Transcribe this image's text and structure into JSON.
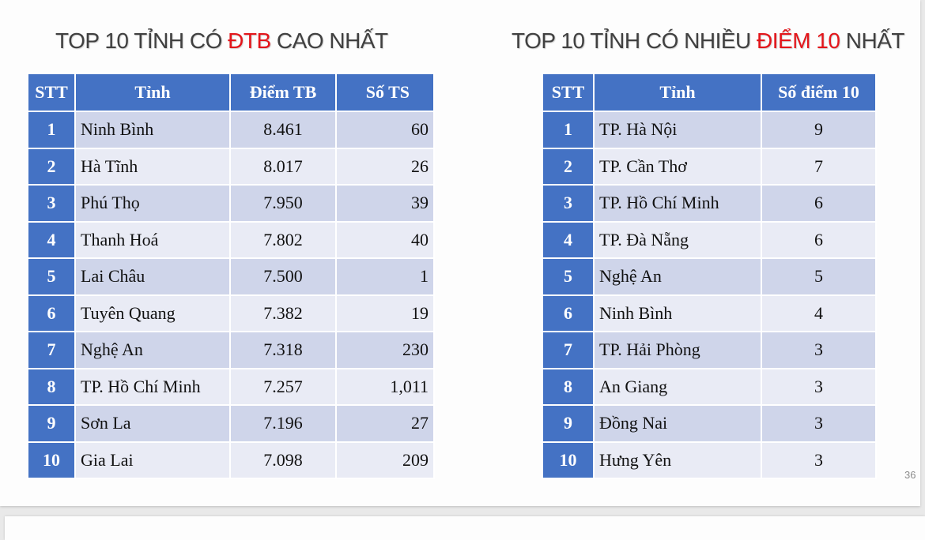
{
  "left": {
    "title_pre": "TOP 10 TỈNH CÓ ",
    "title_hl": "ĐTB",
    "title_post": " CAO NHẤT",
    "headers": [
      "STT",
      "Tỉnh",
      "Điểm TB",
      "Số TS"
    ],
    "rows": [
      [
        "1",
        "Ninh Bình",
        "8.461",
        "60"
      ],
      [
        "2",
        "Hà Tĩnh",
        "8.017",
        "26"
      ],
      [
        "3",
        "Phú Thọ",
        "7.950",
        "39"
      ],
      [
        "4",
        "Thanh Hoá",
        "7.802",
        "40"
      ],
      [
        "5",
        "Lai Châu",
        "7.500",
        "1"
      ],
      [
        "6",
        "Tuyên Quang",
        "7.382",
        "19"
      ],
      [
        "7",
        "Nghệ An",
        "7.318",
        "230"
      ],
      [
        "8",
        "TP. Hồ Chí Minh",
        "7.257",
        "1,011"
      ],
      [
        "9",
        "Sơn La",
        "7.196",
        "27"
      ],
      [
        "10",
        "Gia Lai",
        "7.098",
        "209"
      ]
    ]
  },
  "right": {
    "title_pre": "TOP 10 TỈNH CÓ NHIỀU ",
    "title_hl": "ĐIỂM 10",
    "title_post": " NHẤT",
    "headers": [
      "STT",
      "Tỉnh",
      "Số điểm 10"
    ],
    "rows": [
      [
        "1",
        "TP. Hà Nội",
        "9"
      ],
      [
        "2",
        "TP. Cần Thơ",
        "7"
      ],
      [
        "3",
        "TP. Hồ Chí Minh",
        "6"
      ],
      [
        "4",
        "TP. Đà Nẵng",
        "6"
      ],
      [
        "5",
        "Nghệ An",
        "5"
      ],
      [
        "6",
        "Ninh Bình",
        "4"
      ],
      [
        "7",
        "TP. Hải Phòng",
        "3"
      ],
      [
        "8",
        "An Giang",
        "3"
      ],
      [
        "9",
        "Đồng Nai",
        "3"
      ],
      [
        "10",
        "Hưng Yên",
        "3"
      ]
    ]
  },
  "page_number": "36",
  "colors": {
    "header_blue": "#4472c4",
    "row_dark": "#cfd5ea",
    "row_light": "#e9ebf5",
    "highlight_red": "#e3161b"
  }
}
